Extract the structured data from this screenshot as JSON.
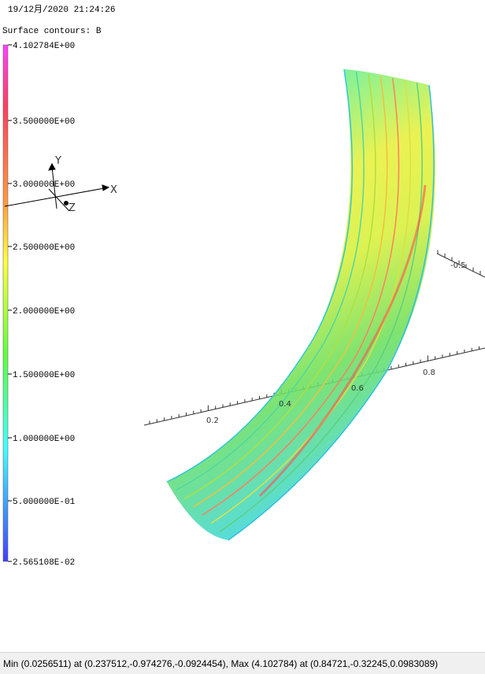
{
  "header": {
    "timestamp": "19/12月/2020 21:24:26",
    "plot_title": "Surface contours: B"
  },
  "legend": {
    "labels": [
      "4.102784E+00",
      "3.500000E+00",
      "3.000000E+00",
      "2.500000E+00",
      "2.000000E+00",
      "1.500000E+00",
      "1.000000E+00",
      "5.000000E-01",
      "2.565108E-02"
    ]
  },
  "triad": {
    "y": "Y",
    "x": "X",
    "z": "Z"
  },
  "axis": {
    "ticks": [
      "0.2",
      "0.4",
      "0.6",
      "0.8"
    ],
    "side_ticks": [
      "-0.5"
    ]
  },
  "status_bar": {
    "text": "Min (0.0256511) at (0.237512,-0.974276,-0.0924454), Max (4.102784) at (0.84721,-0.32245,0.0983089)"
  }
}
